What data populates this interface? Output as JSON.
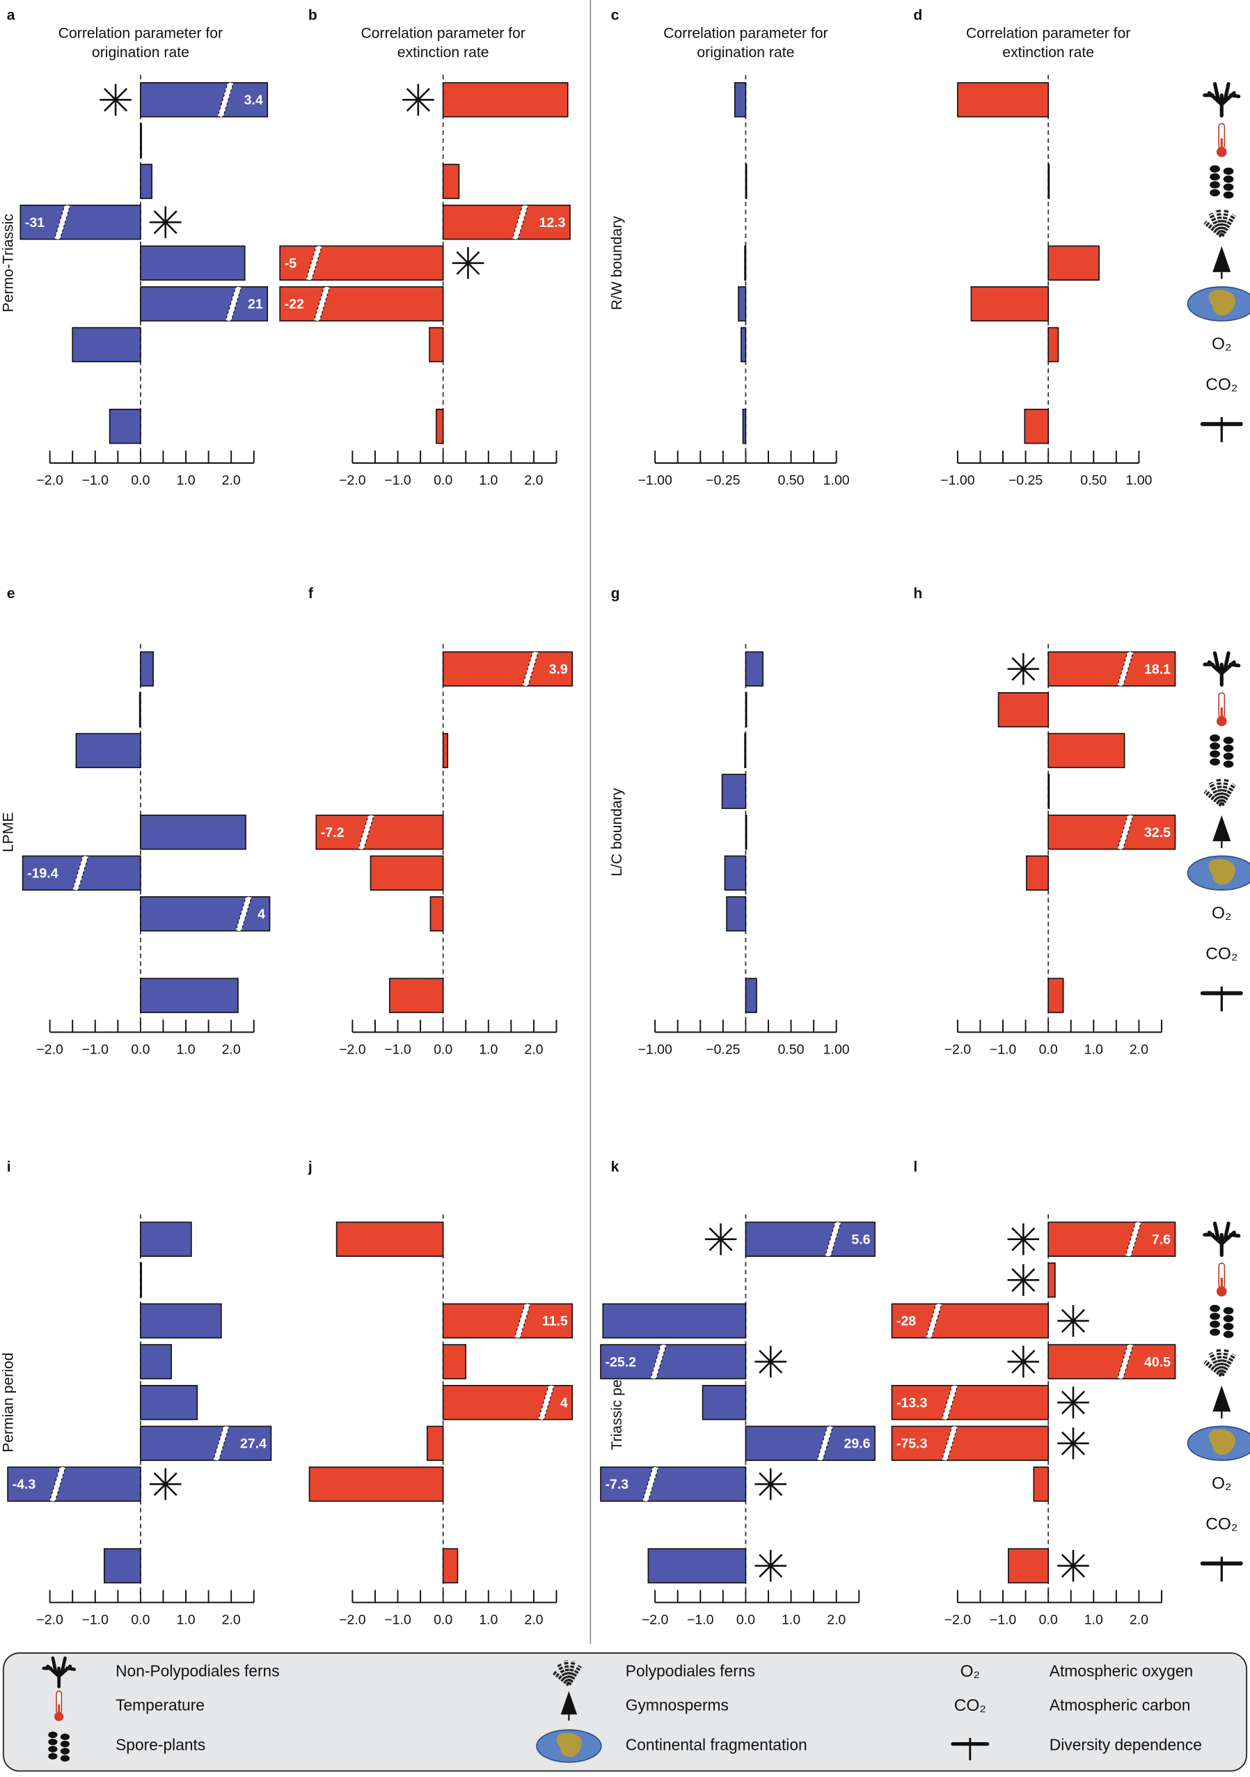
{
  "chart_data": [
    {
      "type": "bar",
      "letter": "a",
      "title": [
        "Correlation parameter for",
        "origination rate"
      ],
      "row_label": "Permo-Triassic",
      "color": "#4f58aa",
      "values": [
        3.4,
        0.02,
        0.25,
        -31,
        2.3,
        21,
        -1.5,
        null,
        -0.68
      ],
      "significant": [
        true,
        false,
        false,
        true,
        false,
        false,
        false,
        false,
        false
      ],
      "xlim": [
        -2.65,
        2.8
      ],
      "xticks": [
        {
          "value": -2,
          "label": "−2.0"
        },
        {
          "value": -1,
          "label": "−1.0"
        },
        {
          "value": 0,
          "label": "0.0"
        },
        {
          "value": 1,
          "label": "1.0"
        },
        {
          "value": 2,
          "label": "2.0"
        }
      ],
      "xminor_ticks": [
        -1.5,
        -0.5,
        0.5,
        1.5,
        2.5
      ]
    },
    {
      "type": "bar",
      "letter": "b",
      "title": [
        "Correlation parameter for",
        "extinction rate"
      ],
      "color": "#e8452f",
      "values": [
        2.75,
        null,
        0.35,
        12.3,
        -5,
        -22,
        -0.3,
        null,
        -0.15
      ],
      "significant": [
        true,
        false,
        false,
        false,
        true,
        false,
        false,
        false,
        false
      ],
      "xlim": [
        -3.6,
        2.8
      ],
      "xticks": [
        {
          "value": -2,
          "label": "−2.0"
        },
        {
          "value": -1,
          "label": "−1.0"
        },
        {
          "value": 0,
          "label": "0.0"
        },
        {
          "value": 1,
          "label": "1.0"
        },
        {
          "value": 2,
          "label": "2.0"
        }
      ],
      "xminor_ticks": [
        -1.5,
        -0.5,
        0.5,
        1.5,
        2.5
      ]
    },
    {
      "type": "bar",
      "letter": "c",
      "title": [
        "Correlation parameter for",
        "origination rate"
      ],
      "row_label": "R/W boundary",
      "color": "#4f58aa",
      "values": [
        -0.12,
        null,
        0.005,
        null,
        -0.01,
        -0.08,
        -0.05,
        null,
        -0.03
      ],
      "significant": [
        false,
        false,
        false,
        false,
        false,
        false,
        false,
        false,
        false
      ],
      "xlim": [
        -1.05,
        1.05
      ],
      "xticks": [
        {
          "value": -1,
          "label": "−1.00"
        },
        {
          "value": -0.25,
          "label": "−0.25"
        },
        {
          "value": 0.5,
          "label": "0.50"
        },
        {
          "value": 1,
          "label": "1.00"
        }
      ],
      "xminor_ticks": [
        -0.75,
        -0.5,
        0,
        0.25,
        0.75
      ]
    },
    {
      "type": "bar",
      "letter": "d",
      "title": [
        "Correlation parameter for",
        "extinction rate"
      ],
      "color": "#e8452f",
      "values": [
        -1.0,
        null,
        0.01,
        null,
        0.56,
        -0.85,
        0.11,
        null,
        -0.26
      ],
      "significant": [
        false,
        false,
        false,
        false,
        false,
        false,
        false,
        false,
        false
      ],
      "xlim": [
        -1.05,
        1.05
      ],
      "xticks": [
        {
          "value": -1,
          "label": "−1.00"
        },
        {
          "value": -0.25,
          "label": "−0.25"
        },
        {
          "value": 0.5,
          "label": "0.50"
        },
        {
          "value": 1,
          "label": "1.00"
        }
      ],
      "xminor_ticks": [
        -0.75,
        -0.5,
        0,
        0.25,
        0.75
      ]
    },
    {
      "type": "bar",
      "letter": "e",
      "row_label": "LPME",
      "color": "#4f58aa",
      "values": [
        0.28,
        -0.02,
        -1.42,
        null,
        2.32,
        -19.4,
        4,
        null,
        2.15
      ],
      "significant": [
        false,
        false,
        false,
        false,
        false,
        false,
        false,
        false,
        false
      ],
      "xlim": [
        -2.6,
        2.85
      ],
      "xticks": [
        {
          "value": -2,
          "label": "−2.0"
        },
        {
          "value": -1,
          "label": "−1.0"
        },
        {
          "value": 0,
          "label": "0.0"
        },
        {
          "value": 1,
          "label": "1.0"
        },
        {
          "value": 2,
          "label": "2.0"
        }
      ],
      "xminor_ticks": [
        -1.5,
        -0.5,
        0.5,
        1.5,
        2.5
      ]
    },
    {
      "type": "bar",
      "letter": "f",
      "color": "#e8452f",
      "values": [
        3.9,
        null,
        0.1,
        null,
        -7.2,
        -1.6,
        -0.28,
        null,
        -1.18
      ],
      "significant": [
        false,
        false,
        false,
        false,
        false,
        false,
        false,
        false,
        false
      ],
      "xlim": [
        -2.8,
        2.85
      ],
      "xticks": [
        {
          "value": -2,
          "label": "−2.0"
        },
        {
          "value": -1,
          "label": "−1.0"
        },
        {
          "value": 0,
          "label": "0.0"
        },
        {
          "value": 1,
          "label": "1.0"
        },
        {
          "value": 2,
          "label": "2.0"
        }
      ],
      "xminor_ticks": [
        -1.5,
        -0.5,
        0.5,
        1.5,
        2.5
      ]
    },
    {
      "type": "bar",
      "letter": "g",
      "row_label": "L/C boundary",
      "color": "#4f58aa",
      "values": [
        0.19,
        0.01,
        -0.01,
        -0.26,
        0.01,
        -0.23,
        -0.21,
        null,
        0.12
      ],
      "significant": [
        false,
        false,
        false,
        false,
        false,
        false,
        false,
        false,
        false
      ],
      "xlim": [
        -1.05,
        1.05
      ],
      "xticks": [
        {
          "value": -1,
          "label": "−1.00"
        },
        {
          "value": -0.25,
          "label": "−0.25"
        },
        {
          "value": 0.5,
          "label": "0.50"
        },
        {
          "value": 1,
          "label": "1.00"
        }
      ],
      "xminor_ticks": [
        -0.75,
        -0.5,
        0,
        0.25,
        0.75
      ]
    },
    {
      "type": "bar",
      "letter": "h",
      "color": "#e8452f",
      "values": [
        18.1,
        -1.1,
        1.68,
        0.01,
        32.5,
        -0.48,
        null,
        null,
        0.33
      ],
      "significant": [
        true,
        false,
        false,
        false,
        false,
        false,
        false,
        false,
        false
      ],
      "xlim": [
        -2.05,
        2.8
      ],
      "xticks": [
        {
          "value": -2,
          "label": "−2.0"
        },
        {
          "value": -1,
          "label": "−1.0"
        },
        {
          "value": 0,
          "label": "0.0"
        },
        {
          "value": 1,
          "label": "1.0"
        },
        {
          "value": 2,
          "label": "2.0"
        }
      ],
      "xminor_ticks": [
        -1.5,
        -0.5,
        0.5,
        1.5,
        2.5
      ]
    },
    {
      "type": "bar",
      "letter": "i",
      "row_label": "Permian period",
      "color": "#4f58aa",
      "values": [
        1.12,
        0.02,
        1.78,
        0.68,
        1.25,
        27.4,
        -4.3,
        null,
        -0.8
      ],
      "significant": [
        false,
        false,
        false,
        false,
        false,
        false,
        true,
        false,
        false
      ],
      "xlim": [
        -2.93,
        2.88
      ],
      "xticks": [
        {
          "value": -2,
          "label": "−2.0"
        },
        {
          "value": -1,
          "label": "−1.0"
        },
        {
          "value": 0,
          "label": "0.0"
        },
        {
          "value": 1,
          "label": "1.0"
        },
        {
          "value": 2,
          "label": "2.0"
        }
      ],
      "xminor_ticks": [
        -1.5,
        -0.5,
        0.5,
        1.5,
        2.5
      ]
    },
    {
      "type": "bar",
      "letter": "j",
      "color": "#e8452f",
      "values": [
        -2.35,
        null,
        11.5,
        0.5,
        4,
        -0.35,
        -2.95,
        null,
        0.32
      ],
      "significant": [
        false,
        false,
        false,
        false,
        false,
        false,
        false,
        false,
        false
      ],
      "xlim": [
        -3.0,
        2.85
      ],
      "xticks": [
        {
          "value": -2,
          "label": "−2.0"
        },
        {
          "value": -1,
          "label": "−1.0"
        },
        {
          "value": 0,
          "label": "0.0"
        },
        {
          "value": 1,
          "label": "1.0"
        },
        {
          "value": 2,
          "label": "2.0"
        }
      ],
      "xminor_ticks": [
        -1.5,
        -0.5,
        0.5,
        1.5,
        2.5
      ]
    },
    {
      "type": "bar",
      "letter": "k",
      "row_label": "Triassic period",
      "color": "#4f58aa",
      "values": [
        5.6,
        null,
        -3.15,
        -25.2,
        -0.95,
        29.6,
        -7.3,
        null,
        -2.15
      ],
      "significant": [
        true,
        false,
        false,
        true,
        false,
        false,
        true,
        false,
        true
      ],
      "xlim": [
        -3.2,
        2.85
      ],
      "xticks": [
        {
          "value": -2,
          "label": "−2.0"
        },
        {
          "value": -1,
          "label": "−1.0"
        },
        {
          "value": 0,
          "label": "0.0"
        },
        {
          "value": 1,
          "label": "1.0"
        },
        {
          "value": 2,
          "label": "2.0"
        }
      ],
      "xminor_ticks": [
        -1.5,
        -0.5,
        0.5,
        1.5,
        2.5
      ]
    },
    {
      "type": "bar",
      "letter": "l",
      "color": "#e8452f",
      "values": [
        7.6,
        0.15,
        -28,
        40.5,
        -13.3,
        -75.3,
        -0.32,
        null,
        -0.88
      ],
      "significant": [
        true,
        true,
        true,
        true,
        true,
        true,
        false,
        false,
        true
      ],
      "xlim": [
        -3.45,
        2.8
      ],
      "xticks": [
        {
          "value": -2,
          "label": "−2.0"
        },
        {
          "value": -1,
          "label": "−1.0"
        },
        {
          "value": 0,
          "label": "0.0"
        },
        {
          "value": 1,
          "label": "1.0"
        },
        {
          "value": 2,
          "label": "2.0"
        }
      ],
      "xminor_ticks": [
        -1.5,
        -0.5,
        0.5,
        1.5,
        2.5
      ]
    }
  ],
  "legend": [
    {
      "name": "Non-Polypodiales ferns"
    },
    {
      "name": "Temperature"
    },
    {
      "name": "Spore-plants"
    },
    {
      "name": "Polypodiales ferns"
    },
    {
      "name": "Gymnosperms"
    },
    {
      "name": "Continental fragmentation"
    },
    {
      "name": "Atmospheric oxygen",
      "symbol": "O₂"
    },
    {
      "name": "Atmospheric carbon",
      "symbol": "CO₂"
    },
    {
      "name": "Diversity dependence"
    }
  ]
}
